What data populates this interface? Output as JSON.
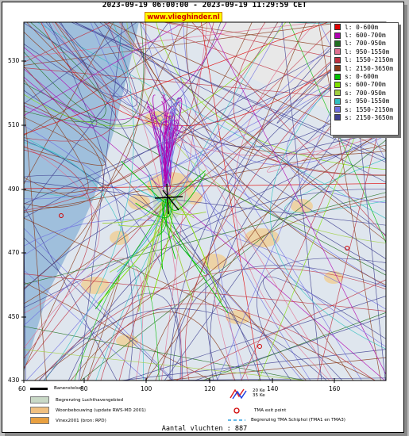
{
  "header": {
    "title": "2023-09-19 06:00:00 - 2023-09-19 11:29:59 CET",
    "brand": "www.vlieghinder.nl"
  },
  "axes": {
    "y_ticks": [
      "530",
      "510",
      "490",
      "470",
      "450",
      "430"
    ],
    "x_ticks": [
      "60",
      "80",
      "100",
      "120",
      "140",
      "160"
    ]
  },
  "legend": [
    {
      "label": "l: 0-600m",
      "color": "#e00000"
    },
    {
      "label": "l: 600-700m",
      "color": "#b000b0"
    },
    {
      "label": "l: 700-950m",
      "color": "#207020"
    },
    {
      "label": "l: 950-1550m",
      "color": "#e07090"
    },
    {
      "label": "l: 1550-2150m",
      "color": "#c03040"
    },
    {
      "label": "l: 2150-3650m",
      "color": "#8a3a1a"
    },
    {
      "label": "s: 0-600m",
      "color": "#00c000"
    },
    {
      "label": "s: 600-700m",
      "color": "#80e000"
    },
    {
      "label": "s: 700-950m",
      "color": "#a0d040"
    },
    {
      "label": "s: 950-1550m",
      "color": "#30c0c0"
    },
    {
      "label": "s: 1550-2150m",
      "color": "#7070e0"
    },
    {
      "label": "s: 2150-3650m",
      "color": "#404090"
    }
  ],
  "bottom_legend": {
    "runway": "Banenstelsel",
    "airport_boundary": "Begrenzing Luchthavengebied",
    "residential": "Woonbebouwing (update RWS-MD 2001)",
    "vinex": "Vinex2001 (bron: RPD)",
    "ke20": "20 Ke",
    "ke35": "35 Ke",
    "tma_exit": "TMA exit point",
    "tma_boundary": "Begrenzing TMA Schiphol  (TMA1 en TMA3)"
  },
  "footer": {
    "flight_count": "Aantal vluchten : 887"
  },
  "colors": {
    "sea": "#9fbfdc",
    "land": "#dfe6ee",
    "urban": "#f0d09a",
    "airport": "#c9d9c6"
  }
}
